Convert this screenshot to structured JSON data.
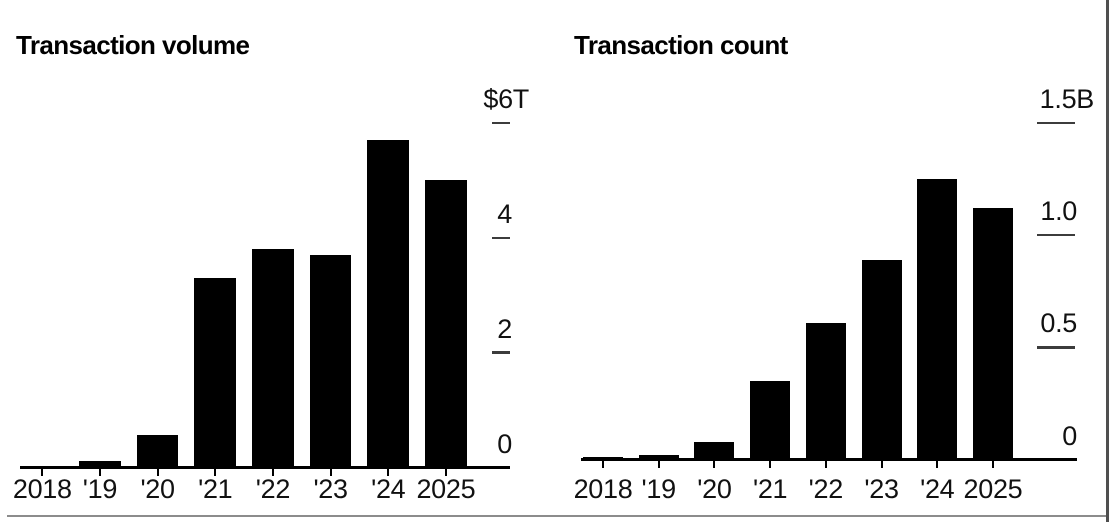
{
  "chart_data": [
    {
      "type": "bar",
      "title": "Transaction volume",
      "categories": [
        "2018",
        "'19",
        "'20",
        "'21",
        "'22",
        "'23",
        "'24",
        "2025"
      ],
      "values": [
        0.03,
        0.12,
        0.57,
        3.3,
        3.8,
        3.7,
        5.7,
        5.0
      ],
      "ylim": [
        0,
        6
      ],
      "yticks": [
        {
          "label": "$6T",
          "value": 6
        },
        {
          "label": "4",
          "value": 4
        },
        {
          "label": "2",
          "value": 2
        },
        {
          "label": "0",
          "value": 0
        }
      ],
      "xlabel": "",
      "ylabel": "",
      "legend_position": "none",
      "grid": false,
      "bar_color": "#000000"
    },
    {
      "type": "bar",
      "title": "Transaction count",
      "categories": [
        "2018",
        "'19",
        "'20",
        "'21",
        "'22",
        "'23",
        "'24",
        "2025"
      ],
      "values": [
        0.01,
        0.02,
        0.08,
        0.35,
        0.61,
        0.89,
        1.25,
        1.12
      ],
      "ylim": [
        0,
        1.5
      ],
      "yticks": [
        {
          "label": "1.5B",
          "value": 1.5
        },
        {
          "label": "1.0",
          "value": 1.0
        },
        {
          "label": "0.5",
          "value": 0.5
        },
        {
          "label": "0",
          "value": 0
        }
      ],
      "xlabel": "",
      "ylabel": "",
      "legend_position": "none",
      "grid": false,
      "bar_color": "#000000"
    }
  ],
  "colors": {
    "bar": "#000000",
    "axis_line": "#000000",
    "tick_dash": "#3c3c3c",
    "text": "#111111",
    "bottom_border": "#8c8c8c",
    "right_border": "#4f4f4f",
    "background": "#ffffff"
  }
}
